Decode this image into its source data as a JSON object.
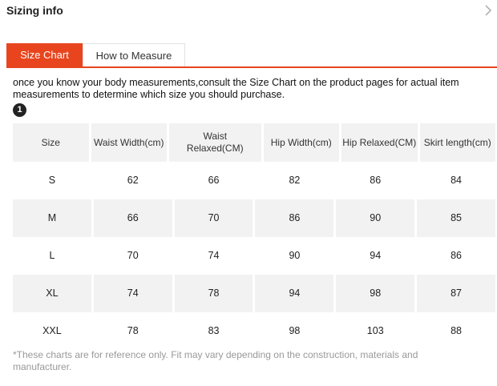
{
  "header": {
    "title": "Sizing info"
  },
  "tabs": [
    {
      "label": "Size Chart",
      "active": true
    },
    {
      "label": "How to Measure",
      "active": false
    }
  ],
  "intro": "once you know your body measurements,consult the Size Chart on the product pages for actual item measurements to determine which size you should purchase.",
  "step_badge": "1",
  "table": {
    "headers": [
      "Size",
      "Waist Width(cm)",
      "Waist Relaxed(CM)",
      "Hip Width(cm)",
      "Hip Relaxed(CM)",
      "Skirt length(cm)"
    ],
    "rows": [
      [
        "S",
        "62",
        "66",
        "82",
        "86",
        "84"
      ],
      [
        "M",
        "66",
        "70",
        "86",
        "90",
        "85"
      ],
      [
        "L",
        "70",
        "74",
        "90",
        "94",
        "86"
      ],
      [
        "XL",
        "74",
        "78",
        "94",
        "98",
        "87"
      ],
      [
        "XXL",
        "78",
        "83",
        "98",
        "103",
        "88"
      ]
    ]
  },
  "footnote": "*These charts are for reference only. Fit may vary depending on the construction, materials and manufacturer.",
  "colors": {
    "accent": "#e8451e",
    "row_alt": "#f2f2f2",
    "note": "#999999"
  },
  "icons": {
    "close": "chevron-right-icon"
  }
}
